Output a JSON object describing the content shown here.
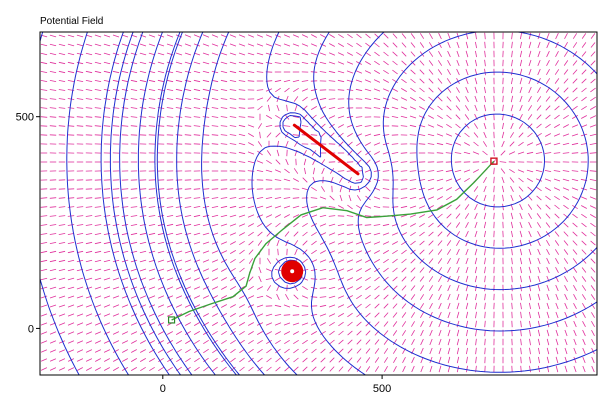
{
  "window": {
    "title": "Potential Field"
  },
  "chart_data": {
    "type": "vector_field_contour",
    "title": "Potential Field",
    "xlabel": "",
    "ylabel": "",
    "xlim": [
      -280,
      990
    ],
    "ylim": [
      -110,
      700
    ],
    "x_ticks": [
      {
        "value": 0,
        "label": "0"
      },
      {
        "value": 500,
        "label": "500"
      }
    ],
    "y_ticks": [
      {
        "value": 0,
        "label": "0"
      },
      {
        "value": 500,
        "label": "500"
      }
    ],
    "grid": false,
    "start": {
      "x": 20,
      "y": 20
    },
    "goal": {
      "x": 755,
      "y": 395
    },
    "obstacles": [
      {
        "kind": "disc",
        "cx": 295,
        "cy": 135,
        "r": 22
      },
      {
        "kind": "segment",
        "x1": 300,
        "y1": 480,
        "x2": 445,
        "y2": 365,
        "halfwidth": 22
      }
    ],
    "path": [
      [
        20,
        20
      ],
      [
        60,
        40
      ],
      [
        110,
        58
      ],
      [
        160,
        75
      ],
      [
        190,
        100
      ],
      [
        198,
        130
      ],
      [
        210,
        165
      ],
      [
        235,
        200
      ],
      [
        275,
        235
      ],
      [
        315,
        268
      ],
      [
        365,
        285
      ],
      [
        420,
        278
      ],
      [
        465,
        262
      ],
      [
        510,
        265
      ],
      [
        565,
        270
      ],
      [
        625,
        280
      ],
      [
        670,
        305
      ],
      [
        710,
        345
      ],
      [
        755,
        395
      ]
    ],
    "colors": {
      "field_arrows": "#e0309c",
      "contours": "#1f2fd0",
      "path": "#3aa23a",
      "obstacle_fill": "#e00000",
      "goal_marker": "#d01020",
      "start_marker": "#2a8a2a"
    }
  }
}
